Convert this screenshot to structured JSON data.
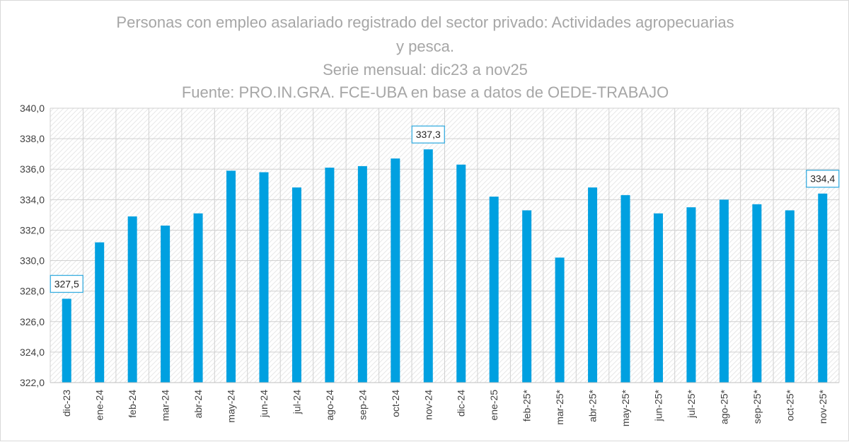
{
  "chart_data": {
    "type": "bar",
    "title": [
      "Personas con empleo asalariado registrado del sector privado: Actividades agropecuarias",
      "y pesca.",
      "Serie mensual: dic23 a nov25",
      "Fuente: PRO.IN.GRA. FCE-UBA en base a datos de OEDE-TRABAJO"
    ],
    "categories": [
      "dic-23",
      "ene-24",
      "feb-24",
      "mar-24",
      "abr-24",
      "may-24",
      "jun-24",
      "jul-24",
      "ago-24",
      "sep-24",
      "oct-24",
      "nov-24",
      "dic-24",
      "ene-25",
      "feb-25*",
      "mar-25*",
      "abr-25*",
      "may-25*",
      "jun-25*",
      "jul-25*",
      "ago-25*",
      "sep-25*",
      "oct-25*",
      "nov-25*"
    ],
    "values": [
      327.5,
      331.2,
      332.9,
      332.3,
      333.1,
      335.9,
      335.8,
      334.8,
      336.1,
      336.2,
      336.7,
      337.3,
      336.3,
      334.2,
      333.3,
      330.2,
      334.8,
      334.3,
      333.1,
      333.5,
      334.0,
      333.7,
      333.3,
      334.4
    ],
    "ylim": [
      322,
      340
    ],
    "yticks": [
      "322,0",
      "324,0",
      "326,0",
      "328,0",
      "330,0",
      "332,0",
      "334,0",
      "336,0",
      "338,0",
      "340,0"
    ],
    "data_labels": [
      {
        "index": 0,
        "text": "327,5"
      },
      {
        "index": 11,
        "text": "337,3"
      },
      {
        "index": 23,
        "text": "334,4"
      }
    ],
    "bar_color": "#00a0e0",
    "label_border_color": "#3aaee0",
    "grid": true,
    "xlabel": "",
    "ylabel": ""
  }
}
